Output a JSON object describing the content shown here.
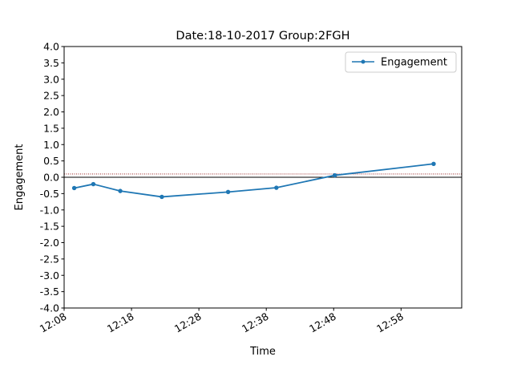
{
  "chart_data": {
    "type": "line",
    "title": "Date:18-10-2017 Group:2FGH",
    "xlabel": "Time",
    "ylabel": "Engagement",
    "x_ticks": [
      "12:08",
      "12:18",
      "12:28",
      "12:38",
      "12:48",
      "12:58"
    ],
    "ylim": [
      -4.0,
      4.0
    ],
    "y_ticks": [
      "-4.0",
      "-3.5",
      "-3.0",
      "-2.5",
      "-2.0",
      "-1.5",
      "-1.0",
      "-0.5",
      "0.0",
      "0.5",
      "1.0",
      "1.5",
      "2.0",
      "2.5",
      "3.0",
      "3.5",
      "4.0"
    ],
    "xlim": [
      "12:08",
      "13:07"
    ],
    "series": [
      {
        "name": "Engagement",
        "color": "#1f77b4",
        "x": [
          "12:09:30",
          "12:12:20",
          "12:16:20",
          "12:22:30",
          "12:32:20",
          "12:39:30",
          "12:48:10",
          "13:02:50"
        ],
        "y": [
          -0.33,
          -0.21,
          -0.42,
          -0.6,
          -0.45,
          -0.32,
          0.06,
          0.41
        ]
      }
    ],
    "reference_lines": [
      {
        "y": 0.0,
        "color": "#000000",
        "style": "solid"
      },
      {
        "y": 0.1,
        "color": "#8b0000",
        "style": "dotted"
      }
    ],
    "legend_position": "top-right",
    "grid": false
  }
}
